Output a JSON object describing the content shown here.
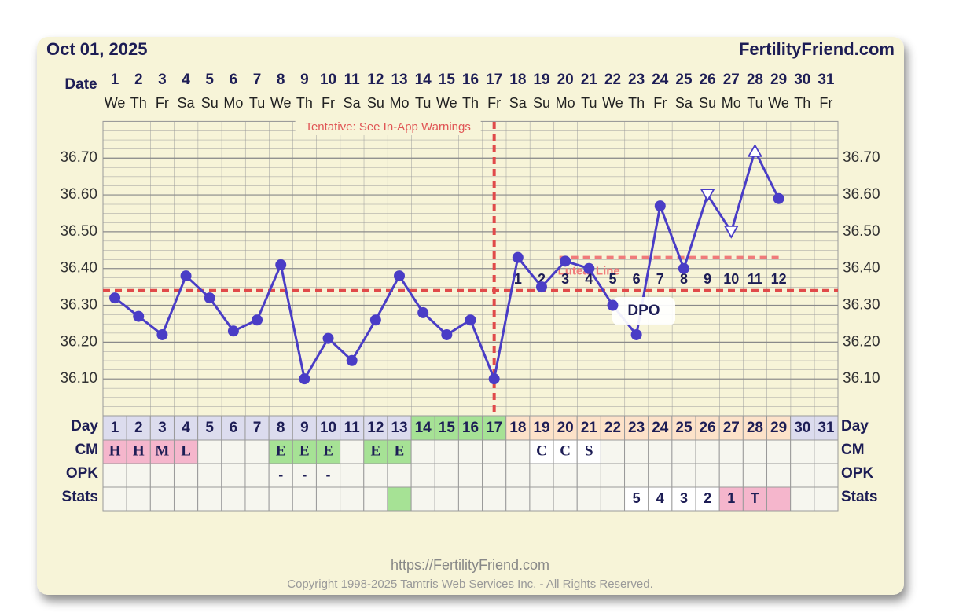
{
  "header": {
    "date": "Oct 01, 2025",
    "site": "FertilityFriend.com"
  },
  "chart_data": {
    "type": "line",
    "x_label": "Date",
    "categories": [
      1,
      2,
      3,
      4,
      5,
      6,
      7,
      8,
      9,
      10,
      11,
      12,
      13,
      14,
      15,
      16,
      17,
      18,
      19,
      20,
      21,
      22,
      23,
      24,
      25,
      26,
      27,
      28,
      29,
      30,
      31
    ],
    "weekdays": [
      "We",
      "Th",
      "Fr",
      "Sa",
      "Su",
      "Mo",
      "Tu",
      "We",
      "Th",
      "Fr",
      "Sa",
      "Su",
      "Mo",
      "Tu",
      "We",
      "Th",
      "Fr",
      "Sa",
      "Su",
      "Mo",
      "Tu",
      "We",
      "Th",
      "Fr",
      "Sa",
      "Su",
      "Mo",
      "Tu",
      "We",
      "Th",
      "Fr"
    ],
    "values": [
      36.32,
      36.27,
      36.22,
      36.38,
      36.32,
      36.23,
      36.26,
      36.41,
      36.1,
      36.21,
      36.15,
      36.26,
      36.38,
      36.28,
      36.22,
      36.26,
      36.1,
      36.43,
      36.35,
      36.42,
      36.4,
      36.3,
      36.22,
      36.57,
      36.4,
      36.6,
      36.5,
      36.72,
      36.59,
      null,
      null
    ],
    "markers": [
      "dot",
      "dot",
      "dot",
      "dot",
      "dot",
      "dot",
      "dot",
      "dot",
      "dot",
      "dot",
      "dot",
      "dot",
      "dot",
      "dot",
      "dot",
      "dot",
      "dot",
      "dot",
      "dot",
      "dot",
      "dot",
      "dot",
      "dot",
      "dot",
      "dot",
      "tri-down",
      "tri-down",
      "tri-up",
      "dot",
      null,
      null
    ],
    "color": "#4a3dc6",
    "ylim": [
      36.0,
      36.8
    ],
    "yticks": [
      {
        "value": 36.1,
        "label": "36.10"
      },
      {
        "value": 36.2,
        "label": "36.20"
      },
      {
        "value": 36.3,
        "label": "36.30"
      },
      {
        "value": 36.4,
        "label": "36.40"
      },
      {
        "value": 36.5,
        "label": "36.50"
      },
      {
        "value": 36.6,
        "label": "36.60"
      },
      {
        "value": 36.7,
        "label": "36.70"
      }
    ],
    "grid": true,
    "coverline": 36.34,
    "ovulation_day": 17,
    "warning": "Tentative: See In-App Warnings",
    "luteal_line": {
      "label": "Luteal Line",
      "value": 36.43,
      "x": [
        19.75,
        29.0
      ]
    },
    "dpo_title": "DPO",
    "dpo_labels": [
      1,
      2,
      3,
      4,
      5,
      6,
      7,
      8,
      9,
      10,
      11,
      12
    ]
  },
  "table": {
    "row_labels": [
      "Day",
      "CM",
      "OPK",
      "Stats"
    ],
    "palette": {
      "l": "#dcdcee",
      "g": "#a6e295",
      "p": "#fde2c9",
      "k": "#f5b6cc",
      "w": "#ffffff"
    },
    "day_colors": [
      "l",
      "l",
      "l",
      "l",
      "l",
      "l",
      "l",
      "l",
      "l",
      "l",
      "l",
      "l",
      "l",
      "g",
      "g",
      "g",
      "g",
      "p",
      "p",
      "p",
      "p",
      "p",
      "p",
      "p",
      "p",
      "p",
      "p",
      "p",
      "p",
      "l",
      "l"
    ],
    "cm": [
      "H",
      "H",
      "M",
      "L",
      null,
      null,
      null,
      "E",
      "E",
      "E",
      null,
      "E",
      "E",
      null,
      null,
      null,
      null,
      null,
      "C",
      "C",
      "S",
      null,
      null,
      null,
      null,
      null,
      null,
      null,
      null,
      null,
      null
    ],
    "cm_colors": [
      "k",
      "k",
      "k",
      "k",
      null,
      null,
      null,
      "g",
      "g",
      "g",
      null,
      "g",
      "g",
      null,
      null,
      null,
      null,
      null,
      "w",
      "w",
      "w",
      null,
      null,
      null,
      null,
      null,
      null,
      null,
      null,
      null,
      null
    ],
    "opk": [
      null,
      null,
      null,
      null,
      null,
      null,
      null,
      "-",
      "-",
      "-",
      null,
      null,
      null,
      null,
      null,
      null,
      null,
      null,
      null,
      null,
      null,
      null,
      null,
      null,
      null,
      null,
      null,
      null,
      null,
      null,
      null
    ],
    "stats": [
      null,
      null,
      null,
      null,
      null,
      null,
      null,
      null,
      null,
      null,
      null,
      null,
      null,
      null,
      null,
      null,
      null,
      null,
      null,
      null,
      null,
      null,
      5,
      4,
      3,
      2,
      1,
      "T",
      null,
      null,
      null
    ],
    "stats_colors": [
      null,
      null,
      null,
      null,
      null,
      null,
      null,
      null,
      null,
      null,
      null,
      null,
      "g",
      null,
      null,
      null,
      null,
      null,
      null,
      null,
      null,
      null,
      "w",
      "w",
      "w",
      "w",
      "k",
      "k",
      "k",
      null,
      null
    ]
  },
  "footer": {
    "url": "https://FertilityFriend.com",
    "copyright": "Copyright 1998-2025 Tamtris Web Services Inc. - All Rights Reserved."
  }
}
